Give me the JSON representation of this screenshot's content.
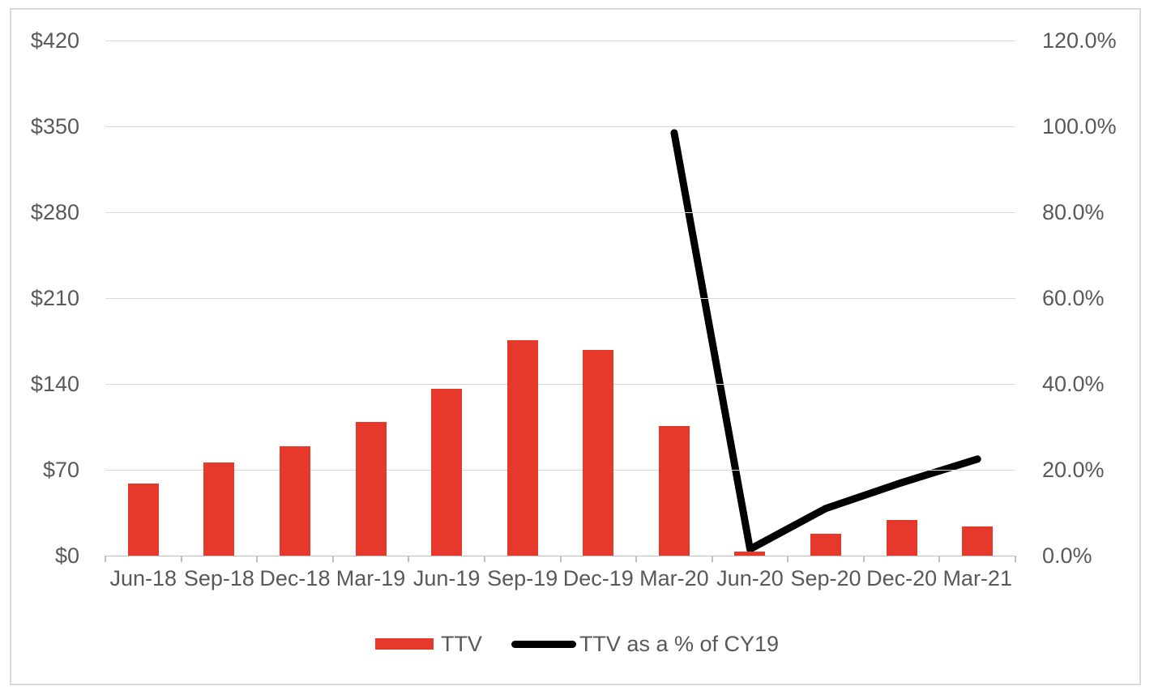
{
  "colors": {
    "bar": "#e6392b",
    "line": "#000000",
    "gridline": "#d9d9d9",
    "baseline": "#bfbfbf",
    "axis_text": "#595959",
    "frame_border": "#d9d9d9",
    "background": "#ffffff"
  },
  "chart_data": {
    "type": "combo",
    "title": "",
    "categories": [
      "Jun-18",
      "Sep-18",
      "Dec-18",
      "Mar-19",
      "Jun-19",
      "Sep-19",
      "Dec-19",
      "Mar-20",
      "Jun-20",
      "Sep-20",
      "Dec-20",
      "Mar-21"
    ],
    "series": [
      {
        "name": "TTV",
        "type": "bar",
        "axis": "left",
        "color": "#e6392b",
        "values": [
          59,
          76,
          89,
          109,
          136,
          176,
          168,
          106,
          3,
          18,
          29,
          24
        ]
      },
      {
        "name": "TTV as a % of CY19",
        "type": "line",
        "axis": "right",
        "color": "#000000",
        "values": [
          null,
          null,
          null,
          null,
          null,
          null,
          null,
          98.5,
          1.5,
          11,
          17,
          22.5
        ]
      }
    ],
    "left_axis": {
      "min": 0,
      "max": 420,
      "step": 70,
      "tick_labels": [
        "$420",
        "$350",
        "$280",
        "$210",
        "$140",
        "$70",
        "$0"
      ]
    },
    "right_axis": {
      "min": 0,
      "max": 120,
      "step": 20,
      "tick_labels": [
        "120.0%",
        "100.0%",
        "80.0%",
        "60.0%",
        "40.0%",
        "20.0%",
        "0.0%"
      ]
    },
    "grid": true,
    "legend_position": "bottom",
    "legend": {
      "items": [
        {
          "label": "TTV",
          "swatch": "bar",
          "color": "#e6392b"
        },
        {
          "label": "TTV as a % of CY19",
          "swatch": "line",
          "color": "#000000"
        }
      ]
    }
  }
}
